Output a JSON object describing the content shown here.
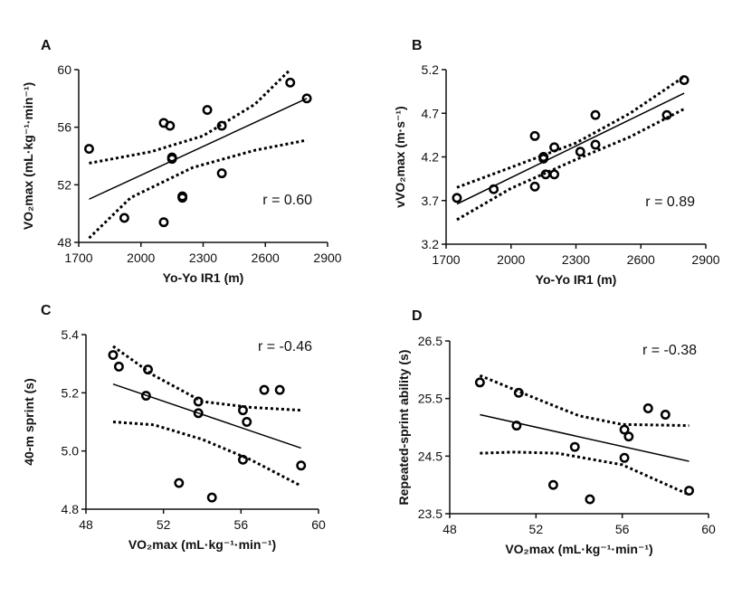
{
  "chart_data": [
    {
      "type": "scatter",
      "panel_label": "A",
      "x_label": "Yo-Yo IR1 (m)",
      "y_label": "VO₂max (mL·kg⁻¹·min⁻¹)",
      "annotation": "r = 0.60",
      "xlim": [
        1700,
        2900
      ],
      "xticks": [
        1700,
        2000,
        2300,
        2600,
        2900
      ],
      "ylim": [
        48,
        60
      ],
      "yticks": [
        48,
        52,
        56,
        60
      ],
      "color": "#000000",
      "x": [
        1750,
        1920,
        2110,
        2140,
        2150,
        2150,
        2200,
        2200,
        2110,
        2320,
        2390,
        2390,
        2720,
        2800
      ],
      "values": [
        54.5,
        49.7,
        56.3,
        56.1,
        53.9,
        53.8,
        51.2,
        51.1,
        49.4,
        57.2,
        56.1,
        52.8,
        59.1,
        58.0
      ],
      "fit": {
        "x": [
          1750,
          2800
        ],
        "values": [
          51.0,
          58.0
        ]
      },
      "ci_upper": {
        "x": [
          1750,
          2050,
          2300,
          2550,
          2720
        ],
        "values": [
          53.5,
          54.3,
          55.4,
          57.6,
          60.0
        ]
      },
      "ci_lower": {
        "x": [
          1750,
          1950,
          2250,
          2550,
          2800
        ],
        "values": [
          48.3,
          51.1,
          53.2,
          54.4,
          55.1
        ]
      }
    },
    {
      "type": "scatter",
      "panel_label": "B",
      "x_label": "Yo-Yo IR1 (m)",
      "y_label": "vVO₂max (m·s⁻¹)",
      "annotation": "r = 0.89",
      "xlim": [
        1700,
        2900
      ],
      "xticks": [
        1700,
        2000,
        2300,
        2600,
        2900
      ],
      "ylim": [
        3.2,
        5.2
      ],
      "yticks": [
        3.2,
        3.7,
        4.2,
        4.7,
        5.2
      ],
      "color": "#000000",
      "x": [
        1750,
        1920,
        2110,
        2110,
        2150,
        2150,
        2160,
        2200,
        2200,
        2320,
        2390,
        2390,
        2720,
        2800
      ],
      "values": [
        3.73,
        3.83,
        4.44,
        3.86,
        4.2,
        4.18,
        4.0,
        4.31,
        4.0,
        4.26,
        4.68,
        4.34,
        4.68,
        5.08
      ],
      "fit": {
        "x": [
          1750,
          2800
        ],
        "values": [
          3.66,
          4.93
        ]
      },
      "ci_upper": {
        "x": [
          1750,
          2000,
          2300,
          2550,
          2800
        ],
        "values": [
          3.85,
          4.08,
          4.36,
          4.7,
          5.12
        ]
      },
      "ci_lower": {
        "x": [
          1750,
          2000,
          2300,
          2550,
          2800
        ],
        "values": [
          3.48,
          3.84,
          4.17,
          4.43,
          4.75
        ]
      }
    },
    {
      "type": "scatter",
      "panel_label": "C",
      "x_label": "VO₂max (mL·kg⁻¹·min⁻¹)",
      "y_label": "40-m sprint (s)",
      "annotation": "r = -0.46",
      "xlim": [
        48,
        60
      ],
      "xticks": [
        48,
        52,
        56,
        60
      ],
      "ylim": [
        4.8,
        5.4
      ],
      "yticks": [
        4.8,
        {
          "value": 5.0,
          "label": "5.0"
        },
        5.2,
        5.4
      ],
      "color": "#000000",
      "x": [
        49.4,
        49.7,
        51.2,
        51.1,
        52.8,
        53.8,
        53.8,
        54.5,
        56.1,
        56.3,
        56.1,
        57.2,
        58.0,
        59.1
      ],
      "values": [
        5.33,
        5.29,
        5.28,
        5.19,
        4.89,
        5.17,
        5.13,
        4.84,
        5.14,
        5.1,
        4.97,
        5.21,
        5.21,
        4.95
      ],
      "fit": {
        "x": [
          49.4,
          59.1
        ],
        "values": [
          5.23,
          5.01
        ]
      },
      "ci_upper": {
        "x": [
          49.4,
          51.5,
          54,
          56.5,
          59.1
        ],
        "values": [
          5.36,
          5.26,
          5.17,
          5.15,
          5.14
        ]
      },
      "ci_lower": {
        "x": [
          49.4,
          51.5,
          54,
          56.5,
          59.1
        ],
        "values": [
          5.1,
          5.09,
          5.04,
          4.97,
          4.88
        ]
      }
    },
    {
      "type": "scatter",
      "panel_label": "D",
      "x_label": "VO₂max (mL·kg⁻¹·min⁻¹)",
      "y_label": "Repeated-sprint ability (s)",
      "annotation": "r = -0.38",
      "xlim": [
        48,
        60
      ],
      "xticks": [
        48,
        52,
        56,
        60
      ],
      "ylim": [
        23.5,
        26.5
      ],
      "yticks": [
        23.5,
        24.5,
        25.5,
        26.5
      ],
      "color": "#000000",
      "x": [
        49.4,
        51.2,
        51.1,
        52.8,
        53.8,
        54.5,
        56.1,
        56.3,
        56.1,
        57.2,
        58.0,
        59.1
      ],
      "values": [
        25.78,
        25.6,
        25.03,
        24.0,
        24.66,
        23.75,
        24.96,
        24.84,
        24.47,
        25.33,
        25.22,
        23.9
      ],
      "fit": {
        "x": [
          49.4,
          59.1
        ],
        "values": [
          25.22,
          24.41
        ]
      },
      "ci_upper": {
        "x": [
          49.4,
          52,
          54,
          56,
          59.1
        ],
        "values": [
          25.9,
          25.5,
          25.2,
          25.05,
          25.03
        ]
      },
      "ci_lower": {
        "x": [
          49.4,
          51,
          53,
          56,
          59.1
        ],
        "values": [
          24.55,
          24.57,
          24.55,
          24.35,
          23.83
        ]
      }
    }
  ]
}
